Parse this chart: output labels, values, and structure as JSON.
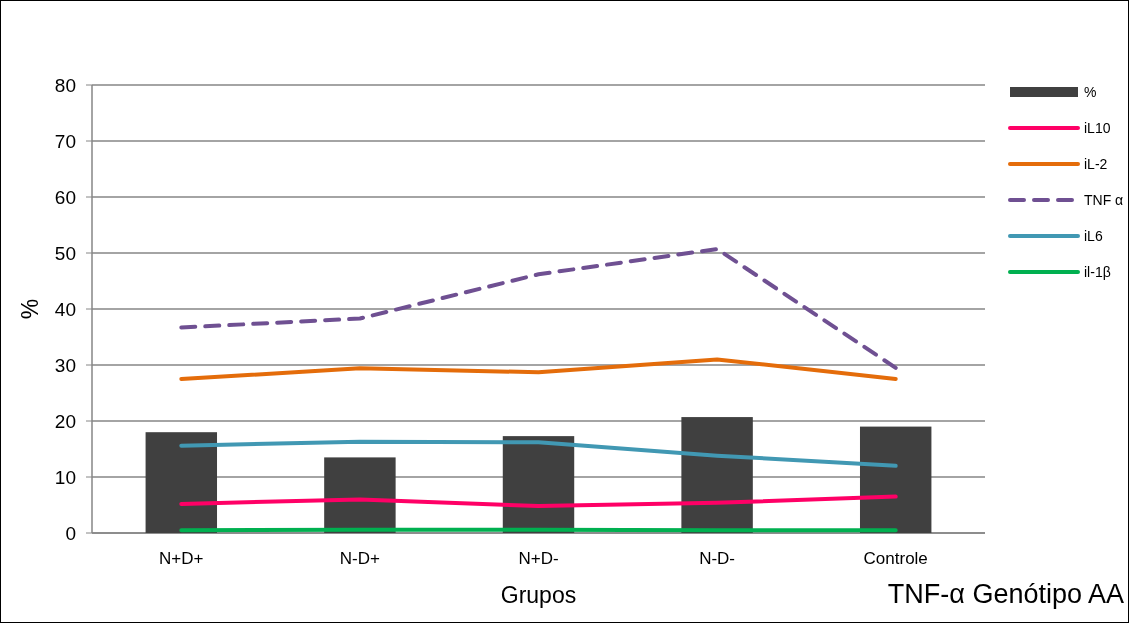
{
  "chart_data": {
    "type": "line",
    "xlabel": "Grupos",
    "ylabel": "%",
    "annotations": [
      "TNF-α Genótipo AA"
    ],
    "categories": [
      "N+D+",
      "N-D+",
      "N+D-",
      "N-D-",
      "Controle"
    ],
    "ylim": [
      0,
      80
    ],
    "yticks": [
      0,
      10,
      20,
      30,
      40,
      50,
      60,
      70,
      80
    ],
    "grid": "y",
    "legend": "right",
    "series": [
      {
        "name": "%",
        "type": "bar",
        "color": "#404040",
        "values": [
          18,
          13.5,
          17.3,
          20.7,
          19
        ]
      },
      {
        "name": "iL10",
        "color": "#ff0066",
        "values": [
          5.2,
          6,
          4.8,
          5.4,
          6.5
        ]
      },
      {
        "name": "iL-2",
        "color": "#e46c0a",
        "values": [
          27.5,
          29.4,
          28.7,
          31,
          27.5
        ]
      },
      {
        "name": "TNF α",
        "color": "#6f5092",
        "line_style": "dashed",
        "values": [
          36.7,
          38.3,
          46.2,
          50.7,
          29.5
        ]
      },
      {
        "name": "iL6",
        "color": "#4198b3",
        "values": [
          15.6,
          16.3,
          16.2,
          13.8,
          12
        ]
      },
      {
        "name": "il-1β",
        "color": "#00b050",
        "values": [
          0.5,
          0.6,
          0.6,
          0.5,
          0.5
        ]
      }
    ]
  }
}
